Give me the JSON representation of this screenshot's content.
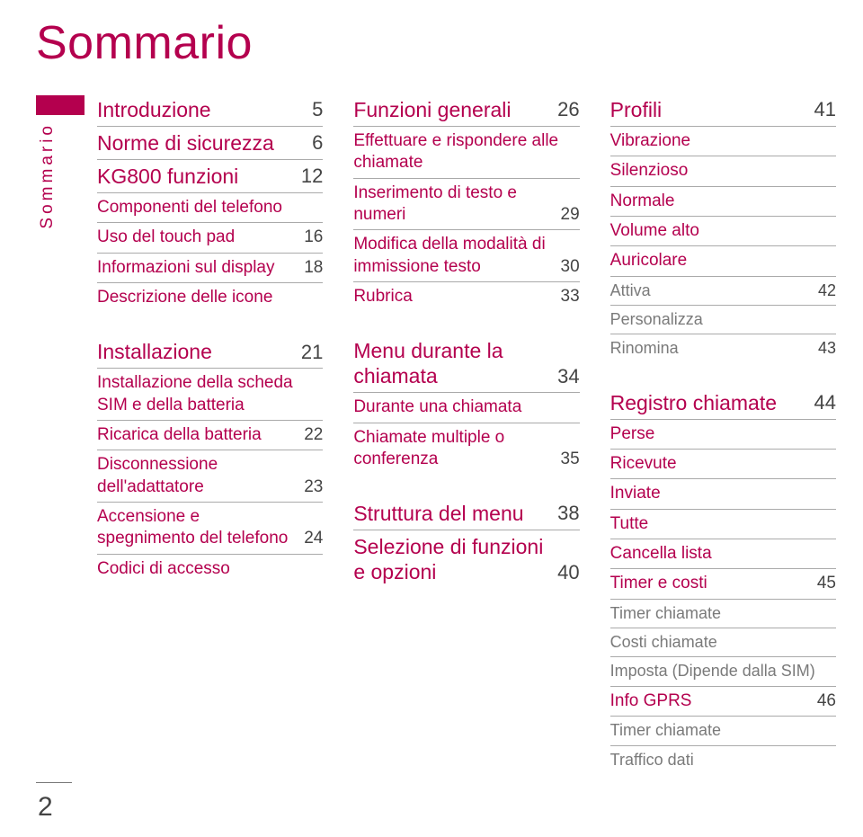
{
  "colors": {
    "accent": "#b4004e",
    "sub": "#7a7a7a",
    "text": "#444444",
    "rule": "#aaaaaa"
  },
  "font": {
    "family": "Segoe UI Light / Helvetica Neue Light",
    "title_pt": 39,
    "h1_pt": 17,
    "h2_pt": 14,
    "h3_pt": 13
  },
  "page": {
    "title": "Sommario",
    "tab": "Sommario",
    "number": "2"
  },
  "col1": {
    "s1": [
      {
        "label": "Introduzione",
        "page": "5",
        "level": 1
      },
      {
        "label": "Norme di sicurezza",
        "page": "6",
        "level": 1
      },
      {
        "label": "KG800 funzioni",
        "page": "12",
        "level": 1
      },
      {
        "label": "Componenti del telefono",
        "page": "",
        "level": 2
      },
      {
        "label": "Uso del touch pad",
        "page": "16",
        "level": 2
      },
      {
        "label": "Informazioni sul display",
        "page": "18",
        "level": 2
      },
      {
        "label": "Descrizione delle icone",
        "page": "",
        "level": 2
      }
    ],
    "s2": [
      {
        "label": "Installazione",
        "page": "21",
        "level": 1
      },
      {
        "label": "Installazione della scheda SIM e della batteria",
        "page": "",
        "level": 2
      },
      {
        "label": "Ricarica della batteria",
        "page": "22",
        "level": 2
      },
      {
        "label": "Disconnessione dell'adattatore",
        "page": "23",
        "level": 2
      },
      {
        "label": "Accensione e spegnimento del telefono",
        "page": "24",
        "level": 2
      },
      {
        "label": "Codici di accesso",
        "page": "",
        "level": 2
      }
    ]
  },
  "col2": {
    "s1": [
      {
        "label": "Funzioni generali",
        "page": "26",
        "level": 1
      },
      {
        "label": "Effettuare e rispondere alle chiamate",
        "page": "",
        "level": 2
      },
      {
        "label": "Inserimento di testo e numeri",
        "page": "29",
        "level": 2
      },
      {
        "label": "Modifica della modalità di immissione testo",
        "page": "30",
        "level": 2
      },
      {
        "label": "Rubrica",
        "page": "33",
        "level": 2
      }
    ],
    "s2": [
      {
        "label": "Menu durante la chiamata",
        "page": "34",
        "level": 1
      },
      {
        "label": "Durante una chiamata",
        "page": "",
        "level": 2
      },
      {
        "label": "Chiamate multiple o conferenza",
        "page": "35",
        "level": 2
      }
    ],
    "s3": [
      {
        "label": "Struttura del menu",
        "page": "38",
        "level": 1
      },
      {
        "label": "Selezione di funzioni e opzioni",
        "page": "40",
        "level": 1
      }
    ]
  },
  "col3": {
    "s1": [
      {
        "label": "Profili",
        "page": "41",
        "level": 1
      },
      {
        "label": "Vibrazione",
        "page": "",
        "level": 2
      },
      {
        "label": "Silenzioso",
        "page": "",
        "level": 2
      },
      {
        "label": "Normale",
        "page": "",
        "level": 2
      },
      {
        "label": "Volume alto",
        "page": "",
        "level": 2
      },
      {
        "label": "Auricolare",
        "page": "",
        "level": 2
      },
      {
        "label": "Attiva",
        "page": "42",
        "level": 3
      },
      {
        "label": "Personalizza",
        "page": "",
        "level": 3
      },
      {
        "label": "Rinomina",
        "page": "43",
        "level": 3
      }
    ],
    "s2": [
      {
        "label": "Registro chiamate",
        "page": "44",
        "level": 1
      },
      {
        "label": "Perse",
        "page": "",
        "level": 2
      },
      {
        "label": "Ricevute",
        "page": "",
        "level": 2
      },
      {
        "label": "Inviate",
        "page": "",
        "level": 2
      },
      {
        "label": "Tutte",
        "page": "",
        "level": 2
      },
      {
        "label": "Cancella lista",
        "page": "",
        "level": 2
      },
      {
        "label": "Timer e costi",
        "page": "45",
        "level": 2
      },
      {
        "label": "Timer chiamate",
        "page": "",
        "level": 3
      },
      {
        "label": "Costi chiamate",
        "page": "",
        "level": 3
      },
      {
        "label": "Imposta (Dipende dalla SIM)",
        "page": "",
        "level": 3
      },
      {
        "label": "Info GPRS",
        "page": "46",
        "level": 2
      },
      {
        "label": "Timer chiamate",
        "page": "",
        "level": 3
      },
      {
        "label": "Traffico dati",
        "page": "",
        "level": 3
      }
    ]
  }
}
